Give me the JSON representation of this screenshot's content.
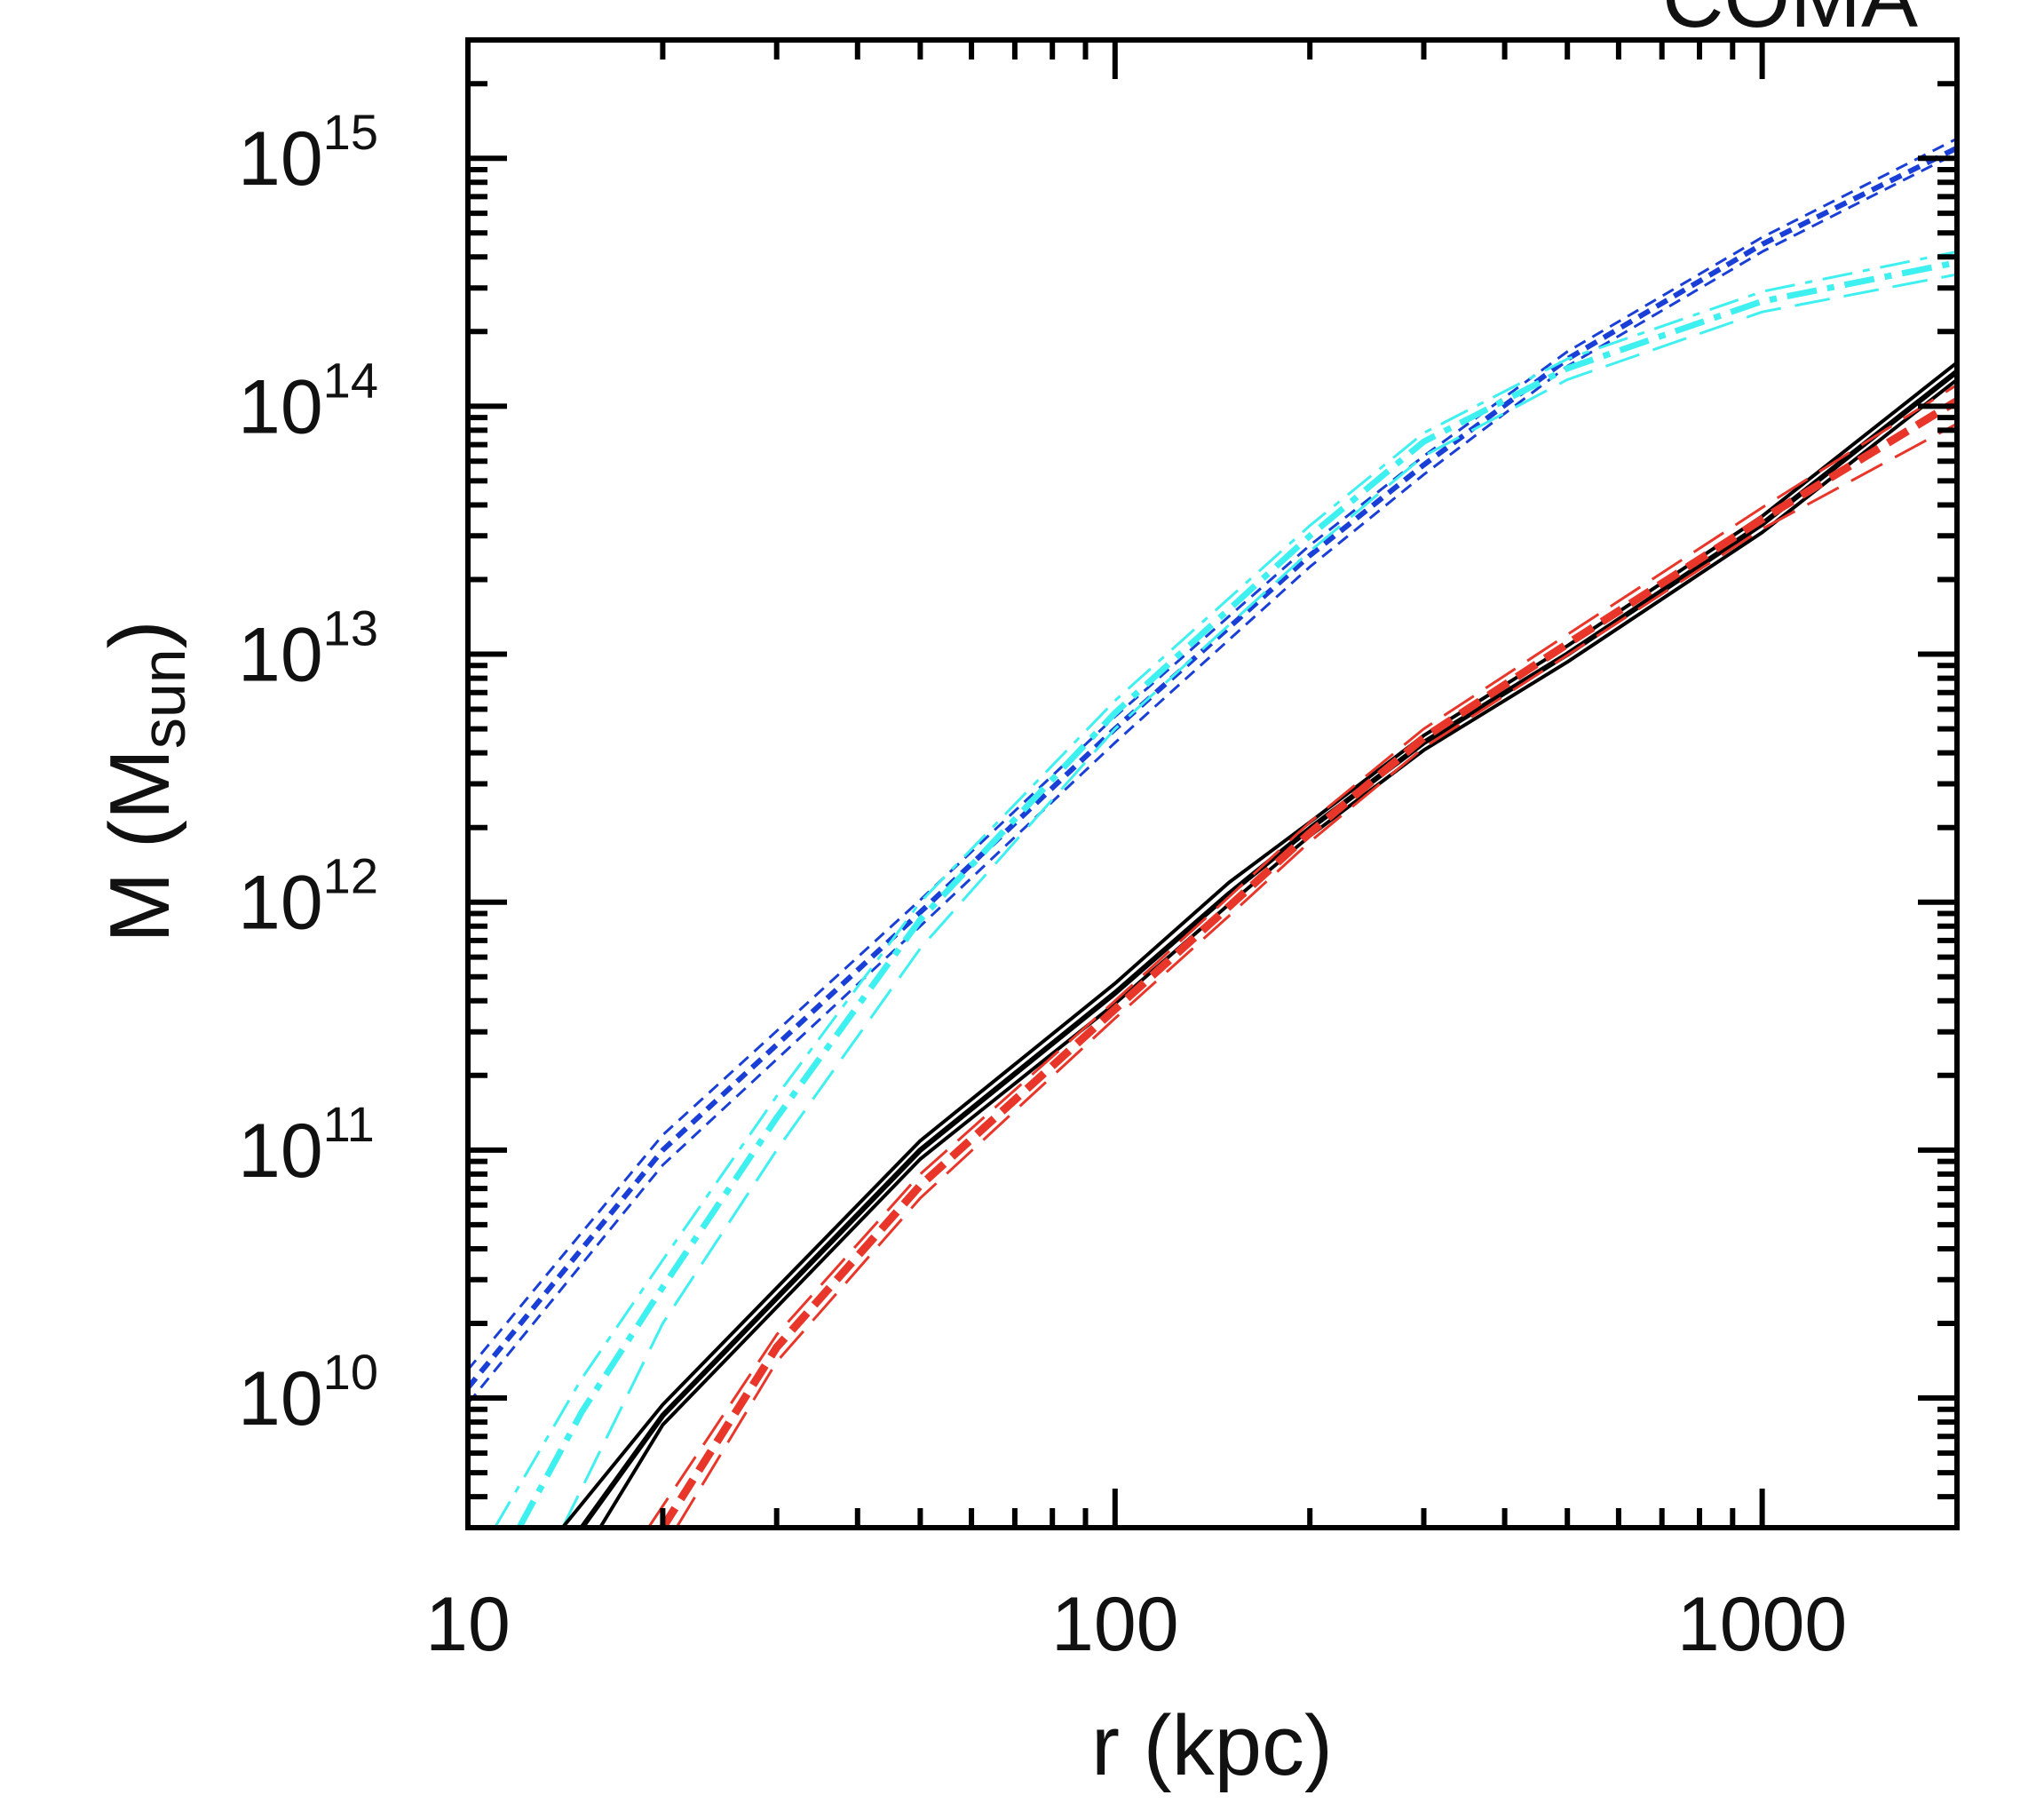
{
  "chart_data": {
    "type": "line",
    "title": "COMA",
    "xlabel": "r (kpc)",
    "ylabel": {
      "main": "M (M",
      "sub": "sun",
      "close": ")"
    },
    "xscale": "log",
    "yscale": "log",
    "xlim": [
      10,
      2000
    ],
    "ylim": [
      3000000000.0,
      3000000000000000.0
    ],
    "x_ticks": [
      {
        "value": 10,
        "label": "10"
      },
      {
        "value": 100,
        "label": "100"
      },
      {
        "value": 1000,
        "label": "1000"
      }
    ],
    "y_ticks": [
      {
        "value": 10000000000.0,
        "base": "10",
        "exp": "10"
      },
      {
        "value": 100000000000.0,
        "base": "10",
        "exp": "11"
      },
      {
        "value": 1000000000000.0,
        "base": "10",
        "exp": "12"
      },
      {
        "value": 10000000000000.0,
        "base": "10",
        "exp": "13"
      },
      {
        "value": 100000000000000.0,
        "base": "10",
        "exp": "14"
      },
      {
        "value": 1000000000000000.0,
        "base": "10",
        "exp": "15"
      }
    ],
    "colors": {
      "blue": "#1a3fd6",
      "cyan": "#3ff0f0",
      "black": "#000000",
      "red": "#e8362a",
      "axis": "#000000"
    },
    "series": [
      {
        "name": "blue-upper",
        "color": "blue",
        "dash": "short",
        "width": 3,
        "x": [
          10,
          20,
          50,
          100,
          200,
          300,
          500,
          1000,
          2000
        ],
        "y": [
          13000000000.0,
          115000000000.0,
          1020000000000.0,
          5600000000000.0,
          27500000000000.0,
          63000000000000.0,
          166000000000000.0,
          480000000000000.0,
          1200000000000000.0
        ]
      },
      {
        "name": "blue-center",
        "color": "blue",
        "dash": "short",
        "width": 6,
        "x": [
          10,
          20,
          50,
          100,
          200,
          300,
          500,
          1000,
          2000
        ],
        "y": [
          11000000000.0,
          100000000000.0,
          910000000000.0,
          5000000000000.0,
          25000000000000.0,
          58000000000000.0,
          155000000000000.0,
          450000000000000.0,
          1100000000000000.0
        ]
      },
      {
        "name": "blue-lower",
        "color": "blue",
        "dash": "short",
        "width": 3,
        "x": [
          10,
          20,
          50,
          100,
          200,
          300,
          500,
          1000,
          2000
        ],
        "y": [
          9500000000.0,
          87000000000.0,
          800000000000.0,
          4400000000000.0,
          22500000000000.0,
          53000000000000.0,
          145000000000000.0,
          420000000000000.0,
          1050000000000000.0
        ]
      },
      {
        "name": "cyan-upper",
        "color": "cyan",
        "dash": "dashdot",
        "width": 3,
        "x": [
          11,
          15,
          20,
          30,
          50,
          100,
          200,
          300,
          500,
          1000,
          2000
        ],
        "y": [
          3000000000.0,
          12000000000.0,
          36000000000.0,
          165000000000.0,
          1000000000000.0,
          6500000000000.0,
          33000000000000.0,
          78000000000000.0,
          155000000000000.0,
          290000000000000.0,
          420000000000000.0
        ]
      },
      {
        "name": "cyan-center",
        "color": "cyan",
        "dash": "dashdot",
        "width": 7,
        "x": [
          12,
          15,
          20,
          30,
          50,
          100,
          200,
          300,
          500,
          1000,
          2000
        ],
        "y": [
          3000000000.0,
          8800000000.0,
          28000000000.0,
          135000000000.0,
          850000000000.0,
          5800000000000.0,
          30000000000000.0,
          72000000000000.0,
          142000000000000.0,
          265000000000000.0,
          380000000000000.0
        ]
      },
      {
        "name": "cyan-lower",
        "color": "cyan",
        "dash": "longdash",
        "width": 3,
        "x": [
          14,
          20,
          30,
          50,
          100,
          200,
          300,
          500,
          1000,
          2000
        ],
        "y": [
          3000000000.0,
          20000000000.0,
          100000000000.0,
          650000000000.0,
          5000000000000.0,
          26000000000000.0,
          63000000000000.0,
          128000000000000.0,
          240000000000000.0,
          340000000000000.0
        ]
      },
      {
        "name": "black-upper",
        "color": "black",
        "dash": "solid",
        "width": 4,
        "x": [
          14,
          20,
          50,
          100,
          150,
          200,
          300,
          500,
          1000,
          2000
        ],
        "y": [
          3000000000.0,
          9400000000.0,
          109000000000.0,
          470000000000.0,
          1200000000000.0,
          2100000000000.0,
          4700000000000.0,
          10800000000000.0,
          36000000000000.0,
          150000000000000.0
        ]
      },
      {
        "name": "black-center",
        "color": "black",
        "dash": "solid",
        "width": 6,
        "x": [
          15,
          20,
          50,
          100,
          150,
          200,
          300,
          500,
          1000,
          2000
        ],
        "y": [
          3000000000.0,
          8500000000.0,
          100000000000.0,
          430000000000.0,
          1080000000000.0,
          1980000000000.0,
          4400000000000.0,
          10000000000000.0,
          33500000000000.0,
          138000000000000.0
        ]
      },
      {
        "name": "black-lower",
        "color": "black",
        "dash": "solid",
        "width": 4,
        "x": [
          16,
          20,
          50,
          100,
          150,
          200,
          300,
          500,
          1000,
          2000
        ],
        "y": [
          3000000000.0,
          7800000000.0,
          92000000000.0,
          390000000000.0,
          980000000000.0,
          1850000000000.0,
          4100000000000.0,
          9300000000000.0,
          31000000000000.0,
          128000000000000.0
        ]
      },
      {
        "name": "red-upper",
        "color": "red",
        "dash": "longdash",
        "width": 3,
        "x": [
          19,
          30,
          50,
          100,
          150,
          200,
          300,
          500,
          1000,
          2000
        ],
        "y": [
          3000000000.0,
          18000000000.0,
          80000000000.0,
          400000000000.0,
          1050000000000.0,
          2100000000000.0,
          5000000000000.0,
          12000000000000.0,
          39000000000000.0,
          122000000000000.0
        ]
      },
      {
        "name": "red-center",
        "color": "red",
        "dash": "dash",
        "width": 9,
        "x": [
          20,
          30,
          50,
          100,
          150,
          200,
          300,
          500,
          1000,
          2000
        ],
        "y": [
          3000000000.0,
          16000000000.0,
          72000000000.0,
          370000000000.0,
          960000000000.0,
          1900000000000.0,
          4600000000000.0,
          11000000000000.0,
          35000000000000.0,
          105000000000000.0
        ]
      },
      {
        "name": "red-lower",
        "color": "red",
        "dash": "longdash",
        "width": 3,
        "x": [
          21,
          30,
          50,
          100,
          150,
          200,
          300,
          500,
          1000,
          2000
        ],
        "y": [
          3000000000.0,
          14000000000.0,
          64000000000.0,
          340000000000.0,
          880000000000.0,
          1750000000000.0,
          4200000000000.0,
          9900000000000.0,
          32000000000000.0,
          85000000000000.0
        ]
      }
    ]
  }
}
